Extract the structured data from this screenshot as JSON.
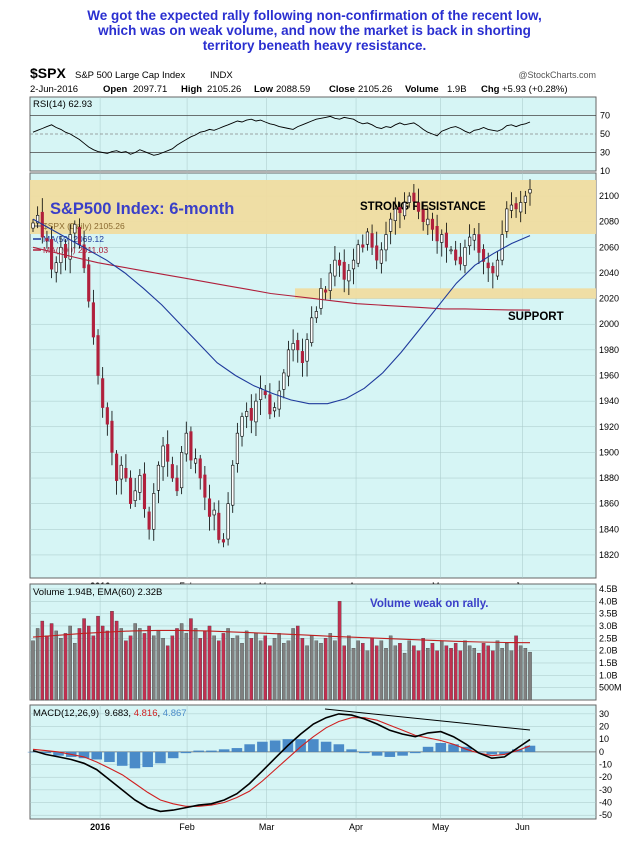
{
  "commentary": [
    "We got the expected rally following non-confirmation of the recent low,",
    "which was on weak volume, and now the market is back in shorting",
    "territory beneath heavy resistance."
  ],
  "header": {
    "symbol": "$SPX",
    "name": "S&P 500 Large Cap Index",
    "exchange": "INDX",
    "watermark": "@StockCharts.com",
    "date": "2-Jun-2016",
    "open_label": "Open",
    "open": "2097.71",
    "high_label": "High",
    "high": "2105.26",
    "low_label": "Low",
    "low": "2088.59",
    "close_label": "Close",
    "close": "2105.26",
    "volume_label": "Volume",
    "volume": "1.9B",
    "chg_label": "Chg",
    "chg": "+5.93 (+0.28%)"
  },
  "colors": {
    "panel_bg": "#d6f5f5",
    "grid": "#a8c8c8",
    "up_candle": "#ffffff",
    "down_candle": "#b0203c",
    "ma50": "#1f3a9c",
    "ma200": "#b0203c",
    "zone": "#f0dca0",
    "annotation": "#3a3fc8",
    "macd_hist": "#4a8bc8",
    "macd_signal": "#d02020",
    "volume_bar_down": "#c03050",
    "volume_bar_up": "#808080"
  },
  "chart_data": [
    {
      "type": "line",
      "panel": "rsi",
      "legend": "RSI(14) 62.93",
      "y_ticks": [
        70,
        50,
        30
      ],
      "ylim": [
        10,
        90
      ],
      "series": [
        {
          "name": "RSI(14)",
          "values": [
            52,
            54,
            56,
            58,
            60,
            57,
            55,
            52,
            50,
            47,
            44,
            40,
            36,
            33,
            31,
            30,
            29,
            31,
            32,
            30,
            31,
            28,
            30,
            33,
            31,
            29,
            27,
            28,
            30,
            32,
            34,
            38,
            41,
            44,
            47,
            49,
            52,
            53,
            55,
            54,
            56,
            58,
            60,
            62,
            64,
            63,
            65,
            66,
            64,
            65,
            63,
            61,
            60,
            58,
            57,
            56,
            55,
            58,
            60,
            62,
            64,
            66,
            67,
            68,
            69,
            67,
            66,
            68,
            67,
            66,
            63,
            61,
            62,
            60,
            57,
            56,
            58,
            57,
            60,
            62,
            60,
            61,
            62,
            59,
            55,
            52,
            50,
            48,
            53,
            55,
            57,
            58,
            56,
            53,
            51,
            54,
            55,
            57,
            55,
            54,
            53,
            55,
            59,
            60,
            58,
            60,
            61,
            62.93
          ]
        }
      ]
    },
    {
      "type": "candlestick",
      "panel": "price",
      "title": "S&P500 Index: 6-month",
      "legend": [
        {
          "label": "$SPX (Daily) 2105.26"
        },
        {
          "label": "MA(50) 2069.12"
        },
        {
          "label": "MA(200) 2011.03"
        }
      ],
      "y_ticks": [
        2100,
        2080,
        2060,
        2040,
        2020,
        2000,
        1980,
        1960,
        1940,
        1920,
        1900,
        1880,
        1860,
        1840,
        1820
      ],
      "ylim": [
        1802,
        2118
      ],
      "x_labels": [
        "2016",
        "Feb",
        "Mar",
        "Apr",
        "May",
        "Jun"
      ],
      "closes": [
        2079,
        2085,
        2068,
        2065,
        2043,
        2048,
        2060,
        2052,
        2070,
        2078,
        2062,
        2044,
        2018,
        1990,
        1960,
        1935,
        1922,
        1900,
        1878,
        1890,
        1880,
        1860,
        1870,
        1882,
        1856,
        1840,
        1868,
        1890,
        1905,
        1893,
        1880,
        1870,
        1900,
        1915,
        1894,
        1895,
        1880,
        1865,
        1850,
        1855,
        1832,
        1830,
        1860,
        1890,
        1915,
        1928,
        1932,
        1925,
        1940,
        1950,
        1945,
        1930,
        1935,
        1948,
        1962,
        1980,
        1985,
        1980,
        1970,
        1988,
        2005,
        2010,
        2028,
        2025,
        2040,
        2050,
        2046,
        2035,
        2042,
        2050,
        2062,
        2060,
        2072,
        2060,
        2050,
        2058,
        2070,
        2082,
        2090,
        2087,
        2095,
        2100,
        2096,
        2088,
        2080,
        2082,
        2074,
        2065,
        2070,
        2060,
        2058,
        2050,
        2047,
        2060,
        2068,
        2070,
        2056,
        2049,
        2044,
        2040,
        2050,
        2070,
        2090,
        2093,
        2090,
        2095,
        2100,
        2105.26
      ],
      "ma50": [
        2082,
        2074,
        2066,
        2058,
        2050,
        2040,
        2028,
        2015,
        2000,
        1985,
        1970,
        1960,
        1952,
        1946,
        1941,
        1938,
        1938,
        1942,
        1950,
        1962,
        1978,
        1996,
        2014,
        2032,
        2046,
        2055,
        2063,
        2069.12
      ],
      "ma200": [
        2060,
        2056,
        2052,
        2048,
        2045,
        2042,
        2039,
        2036,
        2033,
        2030,
        2027,
        2024,
        2022,
        2020,
        2018,
        2016,
        2015,
        2014,
        2013,
        2012,
        2012,
        2011.5,
        2011.2,
        2011.03
      ],
      "annotations": [
        {
          "label": "STRONG RESISTANCE",
          "low": 2110,
          "high": 2150
        },
        {
          "label": "SUPPORT",
          "low": 2020,
          "high": 2028
        }
      ]
    },
    {
      "type": "bar",
      "panel": "volume",
      "legend": "Volume 1.94B, EMA(60) 2.32B",
      "annotation": "Volume weak on rally.",
      "y_tick_labels": [
        "4.5B",
        "4.0B",
        "3.5B",
        "3.0B",
        "2.5B",
        "2.0B",
        "1.5B",
        "1.0B",
        "500M"
      ],
      "y_tick_values": [
        4.5,
        4.0,
        3.5,
        3.0,
        2.5,
        2.0,
        1.5,
        1.0,
        0.5
      ],
      "ylim": [
        0,
        4.7
      ],
      "values": [
        2.4,
        2.9,
        3.2,
        2.6,
        3.1,
        2.8,
        2.5,
        2.7,
        3.0,
        2.3,
        2.9,
        3.3,
        3.0,
        2.6,
        3.4,
        3.0,
        2.8,
        3.6,
        3.2,
        2.9,
        2.4,
        2.6,
        3.1,
        2.9,
        2.7,
        3.0,
        2.6,
        2.8,
        2.5,
        2.2,
        2.6,
        2.9,
        3.1,
        2.7,
        3.3,
        2.9,
        2.5,
        2.8,
        3.0,
        2.6,
        2.4,
        2.7,
        2.9,
        2.5,
        2.6,
        2.3,
        2.8,
        2.5,
        2.7,
        2.4,
        2.6,
        2.2,
        2.5,
        2.7,
        2.3,
        2.4,
        2.9,
        3.0,
        2.5,
        2.2,
        2.6,
        2.4,
        2.3,
        2.5,
        2.7,
        2.4,
        4.0,
        2.2,
        2.6,
        2.1,
        2.4,
        2.3,
        2.0,
        2.5,
        2.2,
        2.4,
        2.1,
        2.6,
        2.2,
        2.3,
        1.9,
        2.4,
        2.2,
        2.0,
        2.5,
        2.1,
        2.3,
        2.0,
        2.4,
        2.2,
        2.1,
        2.3,
        2.0,
        2.4,
        2.2,
        2.1,
        1.9,
        2.3,
        2.2,
        2.0,
        2.4,
        2.1,
        2.3,
        2.0,
        2.6,
        2.2,
        2.1,
        1.94
      ],
      "ema60": [
        2.55,
        2.62,
        2.7,
        2.75,
        2.8,
        2.82,
        2.82,
        2.8,
        2.76,
        2.72,
        2.68,
        2.63,
        2.58,
        2.54,
        2.5,
        2.46,
        2.42,
        2.38,
        2.35,
        2.33,
        2.32
      ],
      "ema_label": "EMA(60)"
    },
    {
      "type": "line",
      "panel": "macd",
      "legend": {
        "name": "MACD(12,26,9)",
        "macd": "9.683",
        "signal": "4.816",
        "histogram": "4.867"
      },
      "y_ticks": [
        30,
        20,
        10,
        0,
        -10,
        -20,
        -30,
        -40,
        -50
      ],
      "ylim": [
        -53,
        37
      ],
      "series": [
        {
          "name": "MACD",
          "values": [
            1,
            -2,
            -4,
            -6,
            -9,
            -14,
            -22,
            -30,
            -38,
            -44,
            -47,
            -46,
            -44,
            -42,
            -41,
            -38,
            -33,
            -25,
            -15,
            -5,
            5,
            14,
            22,
            27,
            30,
            29,
            26,
            22,
            17,
            14,
            12,
            15,
            16,
            12,
            6,
            -1,
            -5,
            -4,
            3,
            9.683
          ]
        },
        {
          "name": "Signal",
          "values": [
            2,
            1,
            0,
            -2,
            -4,
            -8,
            -13,
            -18,
            -25,
            -32,
            -38,
            -41,
            -43,
            -43,
            -42,
            -40,
            -36,
            -31,
            -23,
            -14,
            -5,
            4,
            12,
            19,
            24,
            27,
            27,
            25,
            21,
            17,
            13,
            11,
            9,
            6,
            2,
            -1,
            -3,
            -2,
            1,
            4.816
          ]
        },
        {
          "name": "Histogram",
          "values": [
            0,
            -1,
            -3,
            -4,
            -5,
            -6,
            -8,
            -11,
            -13,
            -12,
            -9,
            -5,
            -1,
            1,
            1,
            2,
            3,
            6,
            8,
            9,
            10,
            10,
            10,
            8,
            6,
            2,
            -1,
            -3,
            -4,
            -3,
            -1,
            4,
            7,
            6,
            4,
            0,
            -2,
            -2,
            2,
            4.867
          ]
        }
      ],
      "trendline": "declining"
    }
  ]
}
